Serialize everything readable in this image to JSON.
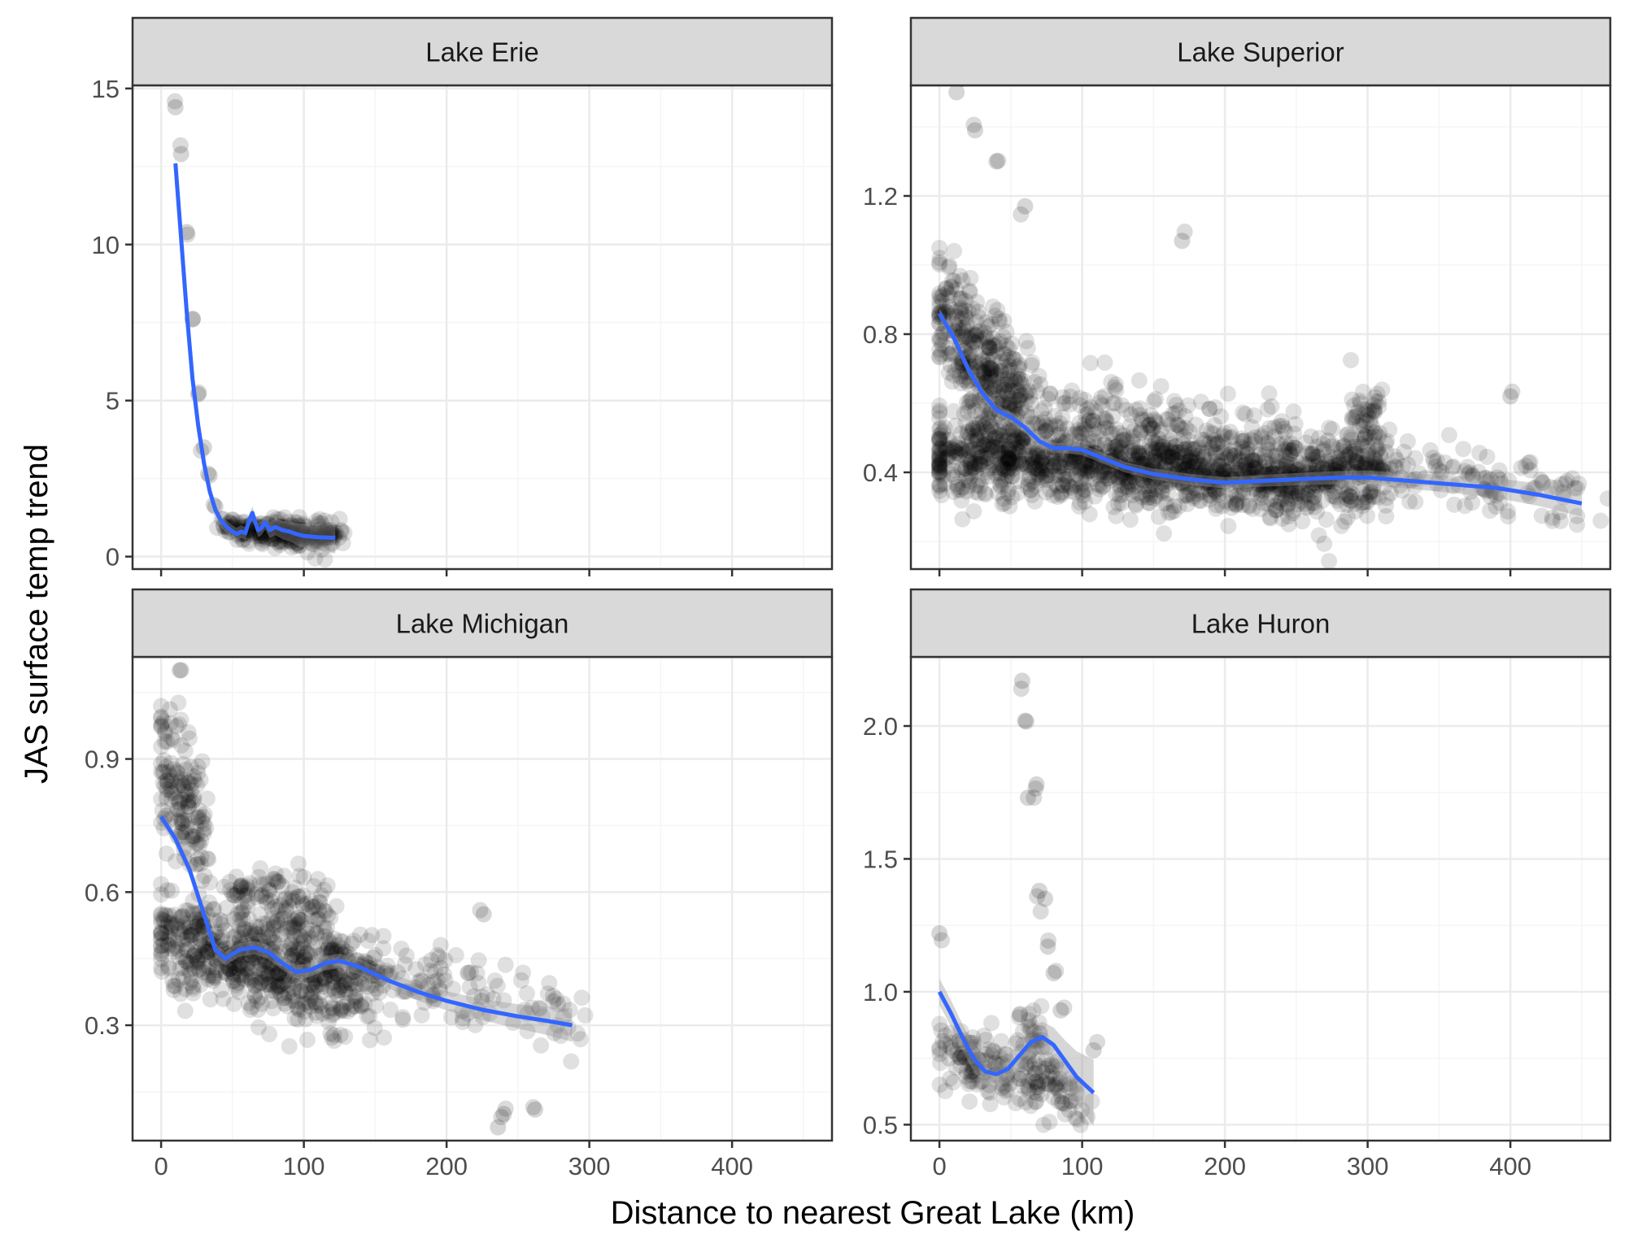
{
  "chart_data": {
    "type": "scatter",
    "layout": "facet-grid-2x2",
    "xlabel": "Distance to nearest Great Lake (km)",
    "ylabel": "JAS surface temp trend",
    "grid": true,
    "xlim": [
      -20,
      470
    ],
    "x_ticks": [
      0,
      100,
      200,
      300,
      400
    ],
    "x_tick_labels": [
      "0",
      "100",
      "200",
      "300",
      "400"
    ],
    "colors": {
      "points": "#000000",
      "smooth": "#3366ff",
      "ribbon": "#999999",
      "strip_bg": "#d9d9d9",
      "grid_major": "#ebebeb",
      "grid_minor": "#f5f5f5",
      "panel_border": "#333333"
    },
    "panels": [
      {
        "title": "Lake Erie",
        "ylim": [
          -0.4,
          15.1
        ],
        "y_ticks": [
          0,
          5,
          10,
          15
        ],
        "y_tick_labels": [
          "0",
          "5",
          "10",
          "15"
        ],
        "smooth": [
          [
            10,
            12.6
          ],
          [
            14,
            10.2
          ],
          [
            18,
            7.8
          ],
          [
            22,
            5.7
          ],
          [
            26,
            4.2
          ],
          [
            30,
            3.0
          ],
          [
            34,
            2.1
          ],
          [
            38,
            1.5
          ],
          [
            42,
            1.15
          ],
          [
            46,
            0.95
          ],
          [
            50,
            0.8
          ],
          [
            53,
            0.72
          ],
          [
            56,
            0.8
          ],
          [
            59,
            0.75
          ],
          [
            62,
            1.2
          ],
          [
            64,
            1.4
          ],
          [
            66,
            1.1
          ],
          [
            68,
            0.85
          ],
          [
            70,
            0.9
          ],
          [
            73,
            1.1
          ],
          [
            76,
            0.85
          ],
          [
            80,
            0.95
          ],
          [
            85,
            0.85
          ],
          [
            90,
            0.8
          ],
          [
            95,
            0.72
          ],
          [
            100,
            0.66
          ],
          [
            110,
            0.62
          ],
          [
            122,
            0.6
          ]
        ],
        "ribbon_halfwidth": 0.2,
        "scatter": [
          {
            "x": [
              10,
              14,
              18,
              22,
              26,
              30,
              34,
              38
            ],
            "y": [
              14.4,
              12.9,
              10.4,
              7.6,
              5.2,
              3.5,
              2.6,
              1.6
            ],
            "spread_x": 1,
            "spread_y": 0.2,
            "n": 14
          },
          {
            "x": [
              45,
              125
            ],
            "y": [
              0.9,
              0.6
            ],
            "spread_x": 12,
            "spread_y": 0.35,
            "n": 260
          }
        ]
      },
      {
        "title": "Lake Superior",
        "ylim": [
          0.12,
          1.52
        ],
        "y_ticks": [
          0.4,
          0.8,
          1.2
        ],
        "y_tick_labels": [
          "0.4",
          "0.8",
          "1.2"
        ],
        "smooth": [
          [
            0,
            0.86
          ],
          [
            10,
            0.79
          ],
          [
            20,
            0.7
          ],
          [
            30,
            0.63
          ],
          [
            40,
            0.58
          ],
          [
            50,
            0.56
          ],
          [
            60,
            0.53
          ],
          [
            70,
            0.49
          ],
          [
            80,
            0.47
          ],
          [
            90,
            0.47
          ],
          [
            100,
            0.465
          ],
          [
            115,
            0.44
          ],
          [
            130,
            0.415
          ],
          [
            150,
            0.395
          ],
          [
            175,
            0.38
          ],
          [
            200,
            0.37
          ],
          [
            225,
            0.375
          ],
          [
            250,
            0.38
          ],
          [
            280,
            0.385
          ],
          [
            300,
            0.385
          ],
          [
            330,
            0.375
          ],
          [
            360,
            0.365
          ],
          [
            390,
            0.355
          ],
          [
            420,
            0.335
          ],
          [
            450,
            0.31
          ]
        ],
        "ribbon_halfwidth": 0.015,
        "scatter": [
          {
            "x": [
              0,
              300
            ],
            "y": [
              0.45,
              0.38
            ],
            "spread_x": 40,
            "spread_y": 0.1,
            "n": 1400
          },
          {
            "x": [
              0,
              60
            ],
            "y": [
              0.85,
              0.6
            ],
            "spread_x": 20,
            "spread_y": 0.15,
            "n": 350
          },
          {
            "x": [
              60,
              250
            ],
            "y": [
              0.6,
              0.45
            ],
            "spread_x": 40,
            "spread_y": 0.1,
            "n": 160
          },
          {
            "x": [
              280,
              450
            ],
            "y": [
              0.45,
              0.32
            ],
            "spread_x": 30,
            "spread_y": 0.08,
            "n": 150
          },
          {
            "x": [
              290,
              310
            ],
            "y": [
              0.6,
              0.55
            ],
            "spread_x": 10,
            "spread_y": 0.1,
            "n": 40
          },
          {
            "x": [
              12,
              25,
              40,
              60,
              170,
              400
            ],
            "y": [
              1.5,
              1.39,
              1.3,
              1.17,
              1.07,
              0.62
            ],
            "spread_x": 3,
            "spread_y": 0.02,
            "n": 12
          }
        ]
      },
      {
        "title": "Lake Michigan",
        "ylim": [
          0.04,
          1.13
        ],
        "y_ticks": [
          0.3,
          0.6,
          0.9
        ],
        "y_tick_labels": [
          "0.3",
          "0.6",
          "0.9"
        ],
        "smooth": [
          [
            0,
            0.77
          ],
          [
            10,
            0.72
          ],
          [
            20,
            0.65
          ],
          [
            30,
            0.55
          ],
          [
            38,
            0.47
          ],
          [
            45,
            0.45
          ],
          [
            55,
            0.47
          ],
          [
            65,
            0.475
          ],
          [
            75,
            0.465
          ],
          [
            85,
            0.44
          ],
          [
            95,
            0.42
          ],
          [
            105,
            0.425
          ],
          [
            115,
            0.44
          ],
          [
            125,
            0.445
          ],
          [
            140,
            0.43
          ],
          [
            160,
            0.4
          ],
          [
            180,
            0.375
          ],
          [
            200,
            0.355
          ],
          [
            225,
            0.335
          ],
          [
            250,
            0.32
          ],
          [
            270,
            0.31
          ],
          [
            288,
            0.3
          ]
        ],
        "ribbon_halfwidth": 0.015,
        "scatter": [
          {
            "x": [
              0,
              140
            ],
            "y": [
              0.5,
              0.38
            ],
            "spread_x": 30,
            "spread_y": 0.09,
            "n": 650
          },
          {
            "x": [
              0,
              30
            ],
            "y": [
              0.9,
              0.75
            ],
            "spread_x": 10,
            "spread_y": 0.12,
            "n": 150
          },
          {
            "x": [
              50,
              110
            ],
            "y": [
              0.6,
              0.55
            ],
            "spread_x": 20,
            "spread_y": 0.07,
            "n": 130
          },
          {
            "x": [
              140,
              290
            ],
            "y": [
              0.42,
              0.32
            ],
            "spread_x": 25,
            "spread_y": 0.07,
            "n": 120
          },
          {
            "x": [
              14,
              226,
              240,
              262,
              236
            ],
            "y": [
              1.1,
              0.55,
              0.1,
              0.11,
              0.07
            ],
            "spread_x": 3,
            "spread_y": 0.02,
            "n": 8
          }
        ]
      },
      {
        "title": "Lake Huron",
        "ylim": [
          0.44,
          2.26
        ],
        "y_ticks": [
          0.5,
          1.0,
          1.5,
          2.0
        ],
        "y_tick_labels": [
          "0.5",
          "1.0",
          "1.5",
          "2.0"
        ],
        "smooth": [
          [
            0,
            1.0
          ],
          [
            8,
            0.92
          ],
          [
            16,
            0.83
          ],
          [
            24,
            0.75
          ],
          [
            32,
            0.7
          ],
          [
            40,
            0.69
          ],
          [
            48,
            0.71
          ],
          [
            56,
            0.76
          ],
          [
            64,
            0.81
          ],
          [
            72,
            0.83
          ],
          [
            80,
            0.8
          ],
          [
            88,
            0.74
          ],
          [
            96,
            0.68
          ],
          [
            108,
            0.62
          ]
        ],
        "ribbon_halfwidth": 0.05,
        "scatter": [
          {
            "x": [
              0,
              100
            ],
            "y": [
              0.8,
              0.6
            ],
            "spread_x": 20,
            "spread_y": 0.1,
            "n": 180
          },
          {
            "x": [
              55,
              75
            ],
            "y": [
              0.8,
              0.8
            ],
            "spread_x": 8,
            "spread_y": 0.15,
            "n": 40
          },
          {
            "x": [
              58,
              60,
              62,
              68,
              70,
              74,
              76,
              80,
              85,
              0,
              108
            ],
            "y": [
              2.17,
              2.02,
              1.73,
              1.78,
              1.38,
              1.35,
              1.17,
              1.07,
              0.93,
              1.22,
              0.78
            ],
            "spread_x": 2,
            "spread_y": 0.02,
            "n": 20
          }
        ]
      }
    ]
  }
}
